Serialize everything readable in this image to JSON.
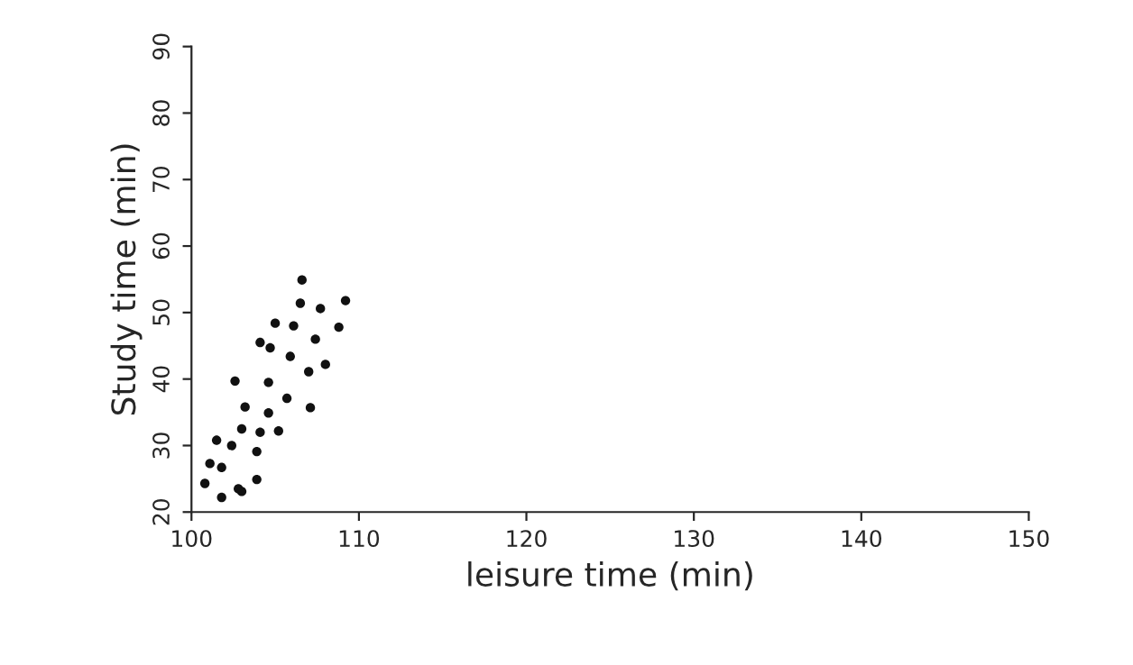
{
  "chart_data": {
    "type": "scatter",
    "xlabel": "leisure time (min)",
    "ylabel": "Study time (min)",
    "marker": "circle",
    "grid": false,
    "legend": false,
    "xlim": [
      100,
      150
    ],
    "xticks": [
      100,
      110,
      120,
      130,
      140,
      150
    ],
    "ylim": [
      20,
      90
    ],
    "yticks": [
      20,
      30,
      40,
      50,
      60,
      70,
      80,
      90
    ],
    "series": [
      {
        "color": "#111111",
        "x": [
          106.6,
          106.5,
          107.7,
          109.2,
          105.0,
          106.1,
          108.8,
          104.1,
          104.7,
          107.4,
          105.9,
          108.0,
          107.0,
          102.6,
          104.6,
          103.2,
          105.7,
          104.6,
          107.1,
          103.0,
          104.1,
          105.2,
          101.5,
          102.4,
          103.9,
          101.1,
          101.8,
          100.8,
          103.9,
          102.8,
          101.8,
          103.0
        ],
        "values": [
          54.9,
          51.4,
          50.6,
          51.8,
          48.4,
          48.0,
          47.8,
          45.5,
          44.7,
          46.0,
          43.4,
          42.2,
          41.1,
          39.7,
          39.5,
          35.8,
          37.1,
          34.9,
          35.7,
          32.5,
          32.0,
          32.2,
          30.8,
          30.0,
          29.1,
          27.3,
          26.7,
          24.3,
          24.9,
          23.5,
          22.2,
          23.1
        ]
      }
    ]
  }
}
